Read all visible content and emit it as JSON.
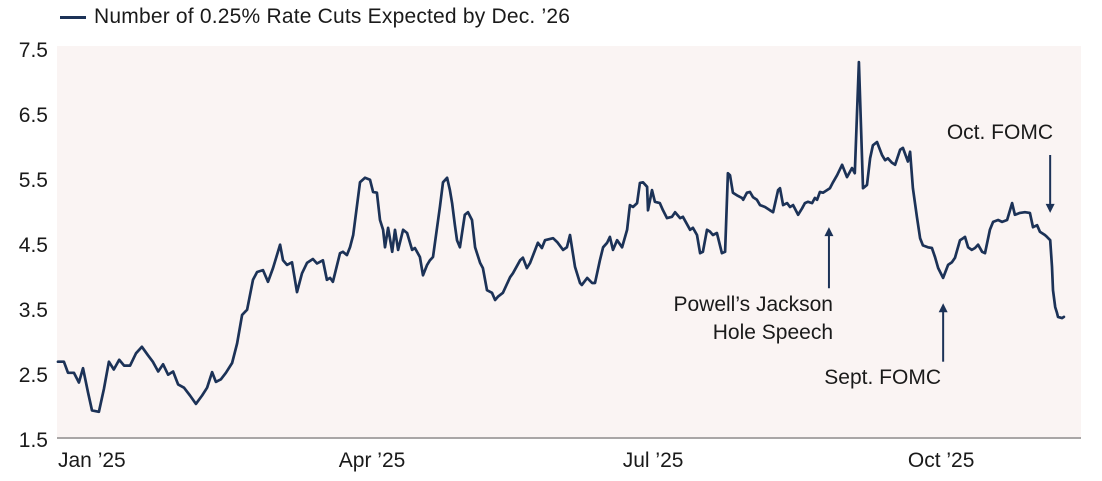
{
  "colors": {
    "line": "#1c3257",
    "plot_bg": "#faf4f3",
    "axis_line": "#a9a6a6",
    "text": "#1a1a1a"
  },
  "chart_data": {
    "type": "line",
    "legend": "Number of 0.25% Rate Cuts Expected by Dec. ’26",
    "ylim": [
      1.5,
      7.5
    ],
    "grid": false,
    "legend_position": "top-left",
    "x_unit": "days since Jan 1 2025",
    "y_ticks": [
      {
        "label": "7.5",
        "value": 7.5
      },
      {
        "label": "6.5",
        "value": 6.5
      },
      {
        "label": "5.5",
        "value": 5.5
      },
      {
        "label": "4.5",
        "value": 4.5
      },
      {
        "label": "3.5",
        "value": 3.5
      },
      {
        "label": "2.5",
        "value": 2.5
      },
      {
        "label": "1.5",
        "value": 1.5
      }
    ],
    "x_ticks": [
      {
        "label": "Jan ’25",
        "day": 0
      },
      {
        "label": "Apr ’25",
        "day": 90
      },
      {
        "label": "Jul ’25",
        "day": 181
      },
      {
        "label": "Oct ’25",
        "day": 272.4
      }
    ],
    "series": [
      {
        "name": "Number of 0.25% Rate Cuts Expected by Dec. ’26",
        "points": [
          [
            0,
            2.72
          ],
          [
            1.9,
            2.72
          ],
          [
            3.2,
            2.55
          ],
          [
            5.1,
            2.55
          ],
          [
            6.7,
            2.4
          ],
          [
            8,
            2.62
          ],
          [
            9.6,
            2.25
          ],
          [
            10.9,
            1.97
          ],
          [
            13.1,
            1.95
          ],
          [
            14.7,
            2.3
          ],
          [
            16.3,
            2.72
          ],
          [
            17.9,
            2.6
          ],
          [
            19.6,
            2.75
          ],
          [
            21.2,
            2.66
          ],
          [
            23.1,
            2.66
          ],
          [
            25,
            2.85
          ],
          [
            26.9,
            2.95
          ],
          [
            28.8,
            2.82
          ],
          [
            30.4,
            2.72
          ],
          [
            32.1,
            2.57
          ],
          [
            33.7,
            2.68
          ],
          [
            35.3,
            2.52
          ],
          [
            36.9,
            2.57
          ],
          [
            38.5,
            2.37
          ],
          [
            40.4,
            2.32
          ],
          [
            42.3,
            2.2
          ],
          [
            44.2,
            2.07
          ],
          [
            46.2,
            2.2
          ],
          [
            47.8,
            2.32
          ],
          [
            49.4,
            2.56
          ],
          [
            50.6,
            2.41
          ],
          [
            52.2,
            2.45
          ],
          [
            53.8,
            2.55
          ],
          [
            55.8,
            2.7
          ],
          [
            57.4,
            3.0
          ],
          [
            59,
            3.44
          ],
          [
            60.6,
            3.52
          ],
          [
            62.5,
            3.98
          ],
          [
            63.8,
            4.1
          ],
          [
            65.7,
            4.13
          ],
          [
            67.3,
            3.95
          ],
          [
            68.9,
            4.16
          ],
          [
            71.2,
            4.52
          ],
          [
            72.1,
            4.28
          ],
          [
            73.4,
            4.21
          ],
          [
            75,
            4.25
          ],
          [
            76.6,
            3.79
          ],
          [
            78.2,
            4.08
          ],
          [
            79.8,
            4.24
          ],
          [
            81.7,
            4.3
          ],
          [
            83,
            4.23
          ],
          [
            84.9,
            4.28
          ],
          [
            86.2,
            3.98
          ],
          [
            87.2,
            4.01
          ],
          [
            88.1,
            3.95
          ],
          [
            90.4,
            4.39
          ],
          [
            91.3,
            4.41
          ],
          [
            92.6,
            4.36
          ],
          [
            93.6,
            4.48
          ],
          [
            94.6,
            4.67
          ],
          [
            96.8,
            5.48
          ],
          [
            98.4,
            5.55
          ],
          [
            100,
            5.52
          ],
          [
            101,
            5.33
          ],
          [
            102.2,
            5.32
          ],
          [
            103.2,
            4.9
          ],
          [
            104.2,
            4.75
          ],
          [
            104.8,
            4.48
          ],
          [
            105.8,
            4.78
          ],
          [
            107.1,
            4.41
          ],
          [
            108,
            4.75
          ],
          [
            109,
            4.44
          ],
          [
            110.6,
            4.75
          ],
          [
            111.9,
            4.7
          ],
          [
            113.5,
            4.44
          ],
          [
            114.4,
            4.47
          ],
          [
            116,
            4.33
          ],
          [
            117,
            4.05
          ],
          [
            118.3,
            4.21
          ],
          [
            119.2,
            4.28
          ],
          [
            120.2,
            4.33
          ],
          [
            122.4,
            5.1
          ],
          [
            123.4,
            5.48
          ],
          [
            124.7,
            5.55
          ],
          [
            125.6,
            5.36
          ],
          [
            126.3,
            5.16
          ],
          [
            127.2,
            4.82
          ],
          [
            127.9,
            4.59
          ],
          [
            128.8,
            4.48
          ],
          [
            130.4,
            4.98
          ],
          [
            131.4,
            5.02
          ],
          [
            132.7,
            4.9
          ],
          [
            133.7,
            4.48
          ],
          [
            135.3,
            4.24
          ],
          [
            136.2,
            4.16
          ],
          [
            137.5,
            3.82
          ],
          [
            139.1,
            3.78
          ],
          [
            140.1,
            3.67
          ],
          [
            141,
            3.72
          ],
          [
            142.6,
            3.78
          ],
          [
            144.9,
            4.02
          ],
          [
            145.8,
            4.08
          ],
          [
            148.1,
            4.28
          ],
          [
            149,
            4.32
          ],
          [
            150.3,
            4.16
          ],
          [
            151.3,
            4.24
          ],
          [
            153.8,
            4.55
          ],
          [
            155.1,
            4.47
          ],
          [
            156.1,
            4.59
          ],
          [
            158.7,
            4.62
          ],
          [
            160,
            4.56
          ],
          [
            161.9,
            4.44
          ],
          [
            163.1,
            4.48
          ],
          [
            164.1,
            4.67
          ],
          [
            165.7,
            4.18
          ],
          [
            167.3,
            3.93
          ],
          [
            167.9,
            3.9
          ],
          [
            169.6,
            4.01
          ],
          [
            171.2,
            3.93
          ],
          [
            172.1,
            3.93
          ],
          [
            173.7,
            4.28
          ],
          [
            174.7,
            4.48
          ],
          [
            176,
            4.55
          ],
          [
            176.9,
            4.64
          ],
          [
            177.9,
            4.44
          ],
          [
            179.2,
            4.59
          ],
          [
            180.8,
            4.48
          ],
          [
            182.4,
            4.75
          ],
          [
            183.3,
            5.13
          ],
          [
            184.3,
            5.1
          ],
          [
            185.6,
            5.16
          ],
          [
            186.5,
            5.47
          ],
          [
            187.5,
            5.48
          ],
          [
            188.8,
            5.41
          ],
          [
            189.1,
            5.05
          ],
          [
            190.4,
            5.36
          ],
          [
            191.3,
            5.18
          ],
          [
            192.9,
            5.16
          ],
          [
            193.9,
            5.05
          ],
          [
            195.2,
            4.93
          ],
          [
            196.8,
            4.95
          ],
          [
            197.8,
            5.02
          ],
          [
            199.4,
            4.93
          ],
          [
            200.3,
            4.95
          ],
          [
            202.6,
            4.75
          ],
          [
            203.5,
            4.78
          ],
          [
            204.8,
            4.67
          ],
          [
            205.8,
            4.39
          ],
          [
            206.7,
            4.41
          ],
          [
            208,
            4.75
          ],
          [
            209,
            4.72
          ],
          [
            209.9,
            4.67
          ],
          [
            211.2,
            4.7
          ],
          [
            212.8,
            4.39
          ],
          [
            213.8,
            4.41
          ],
          [
            214.7,
            5.62
          ],
          [
            215.4,
            5.59
          ],
          [
            216.3,
            5.32
          ],
          [
            217.6,
            5.28
          ],
          [
            219.2,
            5.24
          ],
          [
            219.6,
            5.21
          ],
          [
            220.8,
            5.32
          ],
          [
            221.8,
            5.33
          ],
          [
            222.8,
            5.25
          ],
          [
            224,
            5.21
          ],
          [
            225,
            5.13
          ],
          [
            226.6,
            5.1
          ],
          [
            228.2,
            5.05
          ],
          [
            229.2,
            5.02
          ],
          [
            230.8,
            5.36
          ],
          [
            231.4,
            5.39
          ],
          [
            232.4,
            5.13
          ],
          [
            233.7,
            5.16
          ],
          [
            234.6,
            5.1
          ],
          [
            235.6,
            5.13
          ],
          [
            237.2,
            4.98
          ],
          [
            238.5,
            5.08
          ],
          [
            239.4,
            5.16
          ],
          [
            240.4,
            5.18
          ],
          [
            241.7,
            5.16
          ],
          [
            242.6,
            5.24
          ],
          [
            243.3,
            5.21
          ],
          [
            244.2,
            5.33
          ],
          [
            245.2,
            5.32
          ],
          [
            247.4,
            5.39
          ],
          [
            248.4,
            5.48
          ],
          [
            249.7,
            5.59
          ],
          [
            251.3,
            5.75
          ],
          [
            252.9,
            5.56
          ],
          [
            254.5,
            5.7
          ],
          [
            255.4,
            5.62
          ],
          [
            256.7,
            7.33
          ],
          [
            258,
            5.39
          ],
          [
            259.3,
            5.44
          ],
          [
            260.3,
            5.85
          ],
          [
            261.2,
            6.05
          ],
          [
            262.5,
            6.1
          ],
          [
            264.1,
            5.9
          ],
          [
            265.1,
            5.82
          ],
          [
            266,
            5.85
          ],
          [
            267.3,
            5.78
          ],
          [
            268.3,
            5.75
          ],
          [
            269.9,
            5.98
          ],
          [
            270.8,
            6.01
          ],
          [
            272.4,
            5.8
          ],
          [
            273.1,
            5.95
          ],
          [
            274,
            5.39
          ],
          [
            275.3,
            4.95
          ],
          [
            276.3,
            4.62
          ],
          [
            277.2,
            4.51
          ],
          [
            278.8,
            4.48
          ],
          [
            280.1,
            4.47
          ],
          [
            281.1,
            4.33
          ],
          [
            282.1,
            4.16
          ],
          [
            283.7,
            4.01
          ],
          [
            285.3,
            4.21
          ],
          [
            286.5,
            4.25
          ],
          [
            287.5,
            4.32
          ],
          [
            289.1,
            4.59
          ],
          [
            290.1,
            4.62
          ],
          [
            290.7,
            4.64
          ],
          [
            291.7,
            4.48
          ],
          [
            292.9,
            4.44
          ],
          [
            293.9,
            4.47
          ],
          [
            294.9,
            4.52
          ],
          [
            296.2,
            4.41
          ],
          [
            297.1,
            4.39
          ],
          [
            298.7,
            4.75
          ],
          [
            299.7,
            4.87
          ],
          [
            301.3,
            4.9
          ],
          [
            302.6,
            4.87
          ],
          [
            304.2,
            4.9
          ],
          [
            305.8,
            5.16
          ],
          [
            306.7,
            4.98
          ],
          [
            308.3,
            5.01
          ],
          [
            309.9,
            5.02
          ],
          [
            311.5,
            5.01
          ],
          [
            312.5,
            4.79
          ],
          [
            313.8,
            4.82
          ],
          [
            314.7,
            4.72
          ],
          [
            316.3,
            4.67
          ],
          [
            317,
            4.64
          ],
          [
            318,
            4.59
          ],
          [
            318.6,
            4.18
          ],
          [
            318.9,
            3.82
          ],
          [
            319.6,
            3.56
          ],
          [
            320.2,
            3.47
          ],
          [
            320.5,
            3.41
          ],
          [
            321.8,
            3.39
          ],
          [
            322.4,
            3.41
          ]
        ]
      }
    ],
    "annotations": [
      {
        "key": "jackson",
        "lines": [
          "Powell’s Jackson",
          "Hole Speech"
        ],
        "arrow": {
          "dir": "up",
          "day": 247.1,
          "v_base": 3.85,
          "v_tip": 4.79
        }
      },
      {
        "key": "sept",
        "lines": [
          "Sept. FOMC"
        ],
        "arrow": {
          "dir": "up",
          "day": 283.7,
          "v_base": 2.72,
          "v_tip": 3.62
        }
      },
      {
        "key": "oct",
        "lines": [
          "Oct. FOMC"
        ],
        "arrow": {
          "dir": "down",
          "day": 318,
          "v_base": 5.9,
          "v_tip": 5.01
        }
      }
    ]
  }
}
